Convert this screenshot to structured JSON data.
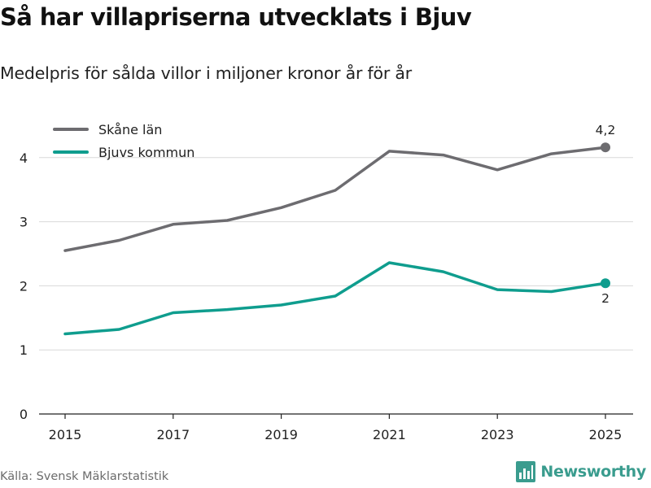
{
  "header": {
    "title": "Så har villapriserna utvecklats i Bjuv",
    "subtitle": "Medelpris för sålda villor i miljoner kronor år för år"
  },
  "footer": {
    "source": "Källa: Svensk Mäklarstatistik",
    "brand_name": "Newsworthy",
    "brand_color": "#3a9c8e",
    "logo_icon": "bar-chart-logo-icon"
  },
  "chart_data": {
    "type": "line",
    "title": "Så har villapriserna utvecklats i Bjuv",
    "subtitle": "Medelpris för sålda villor i miljoner kronor år för år",
    "xlabel": "",
    "ylabel": "",
    "x": [
      2015,
      2016,
      2017,
      2018,
      2019,
      2020,
      2021,
      2022,
      2023,
      2024,
      2025
    ],
    "xticks": [
      "2015",
      "2017",
      "2019",
      "2021",
      "2023",
      "2025"
    ],
    "xlim": [
      2015,
      2025
    ],
    "ylim": [
      0,
      4.2
    ],
    "yticks": [
      "0",
      "1",
      "2",
      "3",
      "4"
    ],
    "grid": true,
    "legend_position": "top-left",
    "series": [
      {
        "name": "Skåne län",
        "color": "#6d6c70",
        "values": [
          2.55,
          2.71,
          2.96,
          3.02,
          3.22,
          3.49,
          4.1,
          4.04,
          3.81,
          4.06,
          4.16
        ],
        "end_label": "4,2"
      },
      {
        "name": "Bjuvs kommun",
        "color": "#0f9d8e",
        "values": [
          1.25,
          1.32,
          1.58,
          1.63,
          1.7,
          1.84,
          2.36,
          2.22,
          1.94,
          1.91,
          2.04
        ],
        "end_label": "2"
      }
    ]
  }
}
